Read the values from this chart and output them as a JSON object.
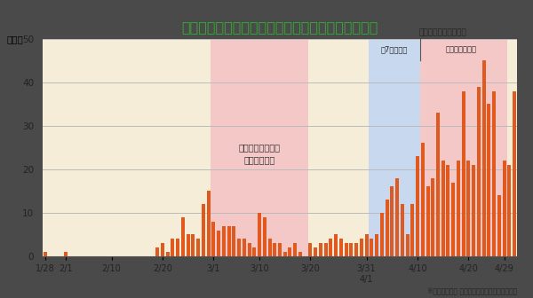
{
  "title": "北海道における新型コロナウイルス感染者数の推移",
  "ylabel": "（人）",
  "source_note": "※出典：北海道 札幌市発表による数値より作成",
  "ylim": [
    0,
    50
  ],
  "yticks": [
    0,
    10,
    20,
    30,
    40,
    50
  ],
  "bar_color": "#E05A20",
  "cream_color": "#F5EDD8",
  "pink_color": "#F5C8C8",
  "blue_color": "#C8D8EE",
  "grid_color": "#BBBBBB",
  "title_color": "#33AA33",
  "fig_bg": "#4A4A4A",
  "values": [
    1,
    0,
    0,
    0,
    1,
    0,
    0,
    0,
    0,
    0,
    0,
    0,
    0,
    0,
    0,
    0,
    0,
    0,
    0,
    0,
    0,
    0,
    2,
    3,
    1,
    4,
    4,
    9,
    5,
    5,
    4,
    12,
    15,
    8,
    6,
    7,
    7,
    7,
    4,
    4,
    3,
    2,
    10,
    9,
    4,
    3,
    3,
    1,
    2,
    3,
    1,
    0,
    3,
    2,
    3,
    3,
    4,
    5,
    4,
    3,
    3,
    3,
    4,
    5,
    4,
    5,
    10,
    13,
    16,
    18,
    12,
    5,
    12,
    23,
    26,
    16,
    18,
    33,
    22,
    21,
    17,
    22,
    38,
    22,
    21,
    39,
    45,
    35,
    38,
    14,
    22,
    21,
    38
  ],
  "xtick_labels": [
    "1/28",
    "2/1",
    "2/10",
    "2/20",
    "3/1",
    "3/10",
    "3/20",
    "3/31 4/1",
    "4/10",
    "4/20",
    "4/29"
  ],
  "xtick_positions": [
    0,
    4,
    13,
    23,
    33,
    42,
    52,
    63,
    73,
    83,
    90
  ],
  "region1_start": -0.5,
  "region1_end": 32.5,
  "region2_start": 32.5,
  "region2_end": 51.5,
  "region3_start": 51.5,
  "region3_end": 63.5,
  "region4_start": 63.5,
  "region4_end": 73.5,
  "region5_start": 73.5,
  "region5_end": 90.5
}
